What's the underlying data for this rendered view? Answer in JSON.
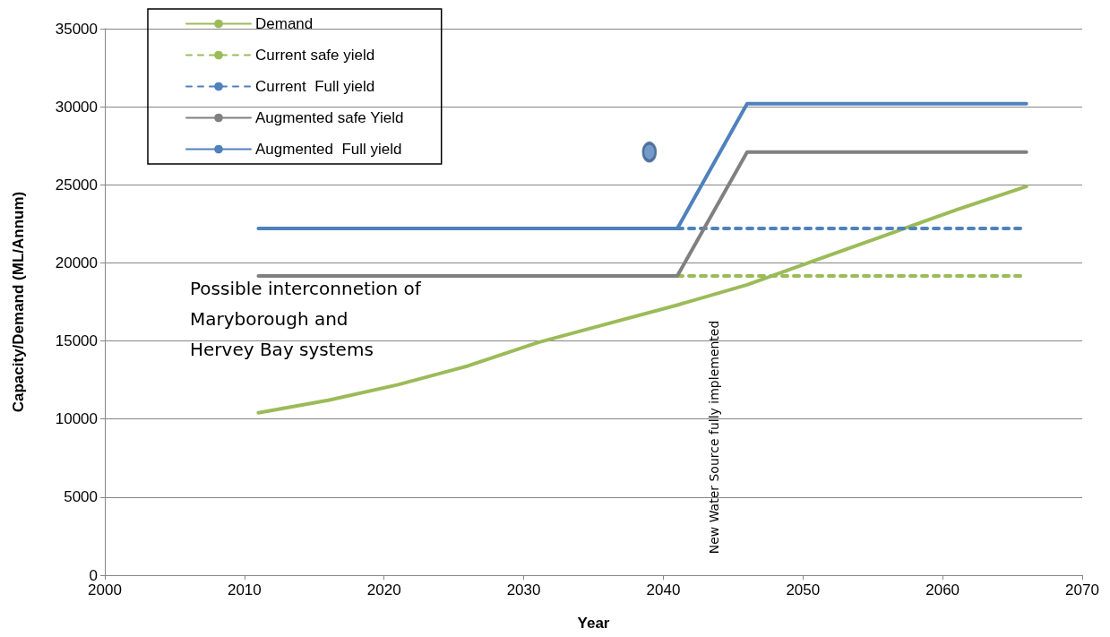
{
  "chart_data": {
    "type": "line",
    "xlabel": "Year",
    "ylabel": "Capacity/Demand (ML/Annum)",
    "xlim": [
      2000,
      2070
    ],
    "xticks": [
      2000,
      2010,
      2020,
      2030,
      2040,
      2050,
      2060,
      2070
    ],
    "ylim": [
      0,
      35000
    ],
    "yticks": [
      0,
      5000,
      10000,
      15000,
      20000,
      25000,
      30000,
      35000
    ],
    "grid": "y",
    "legend": "top left",
    "marker": "none",
    "series": [
      {
        "name": "Demand",
        "color": "#9bbb59",
        "line_style": "solid",
        "x": [
          2011,
          2016,
          2021,
          2026,
          2031,
          2036,
          2041,
          2046,
          2051,
          2056,
          2061,
          2066
        ],
        "values": [
          10400,
          11200,
          12200,
          13400,
          14900,
          16100,
          17300,
          18600,
          20200,
          21800,
          23400,
          24900
        ]
      },
      {
        "name": "Current safe yield",
        "color": "#9bbb59",
        "line_style": "dashed",
        "x": [
          2041,
          2066
        ],
        "values": [
          19160,
          19160
        ]
      },
      {
        "name": "Current  Full yield",
        "color": "#4f81bd",
        "line_style": "dashed",
        "x": [
          2041,
          2066
        ],
        "values": [
          22200,
          22200
        ]
      },
      {
        "name": "Augmented safe Yield",
        "color": "#808080",
        "line_style": "solid",
        "x": [
          2011,
          2041,
          2046,
          2066
        ],
        "values": [
          19160,
          19160,
          27100,
          27100
        ]
      },
      {
        "name": "Augmented  Full yield",
        "color": "#4f81bd",
        "line_style": "solid",
        "x": [
          2011,
          2041,
          2046,
          2066
        ],
        "values": [
          22200,
          22200,
          30200,
          30200
        ]
      },
      {
        "type": "scatter",
        "marker": "circle",
        "color": "#4f81bd",
        "x": [
          2039
        ],
        "values": [
          27100
        ]
      }
    ],
    "annotations": [
      "Possible interconnetion of\nMaryborough and\nHervey Bay systems",
      "New Water Source fully implemented"
    ]
  }
}
